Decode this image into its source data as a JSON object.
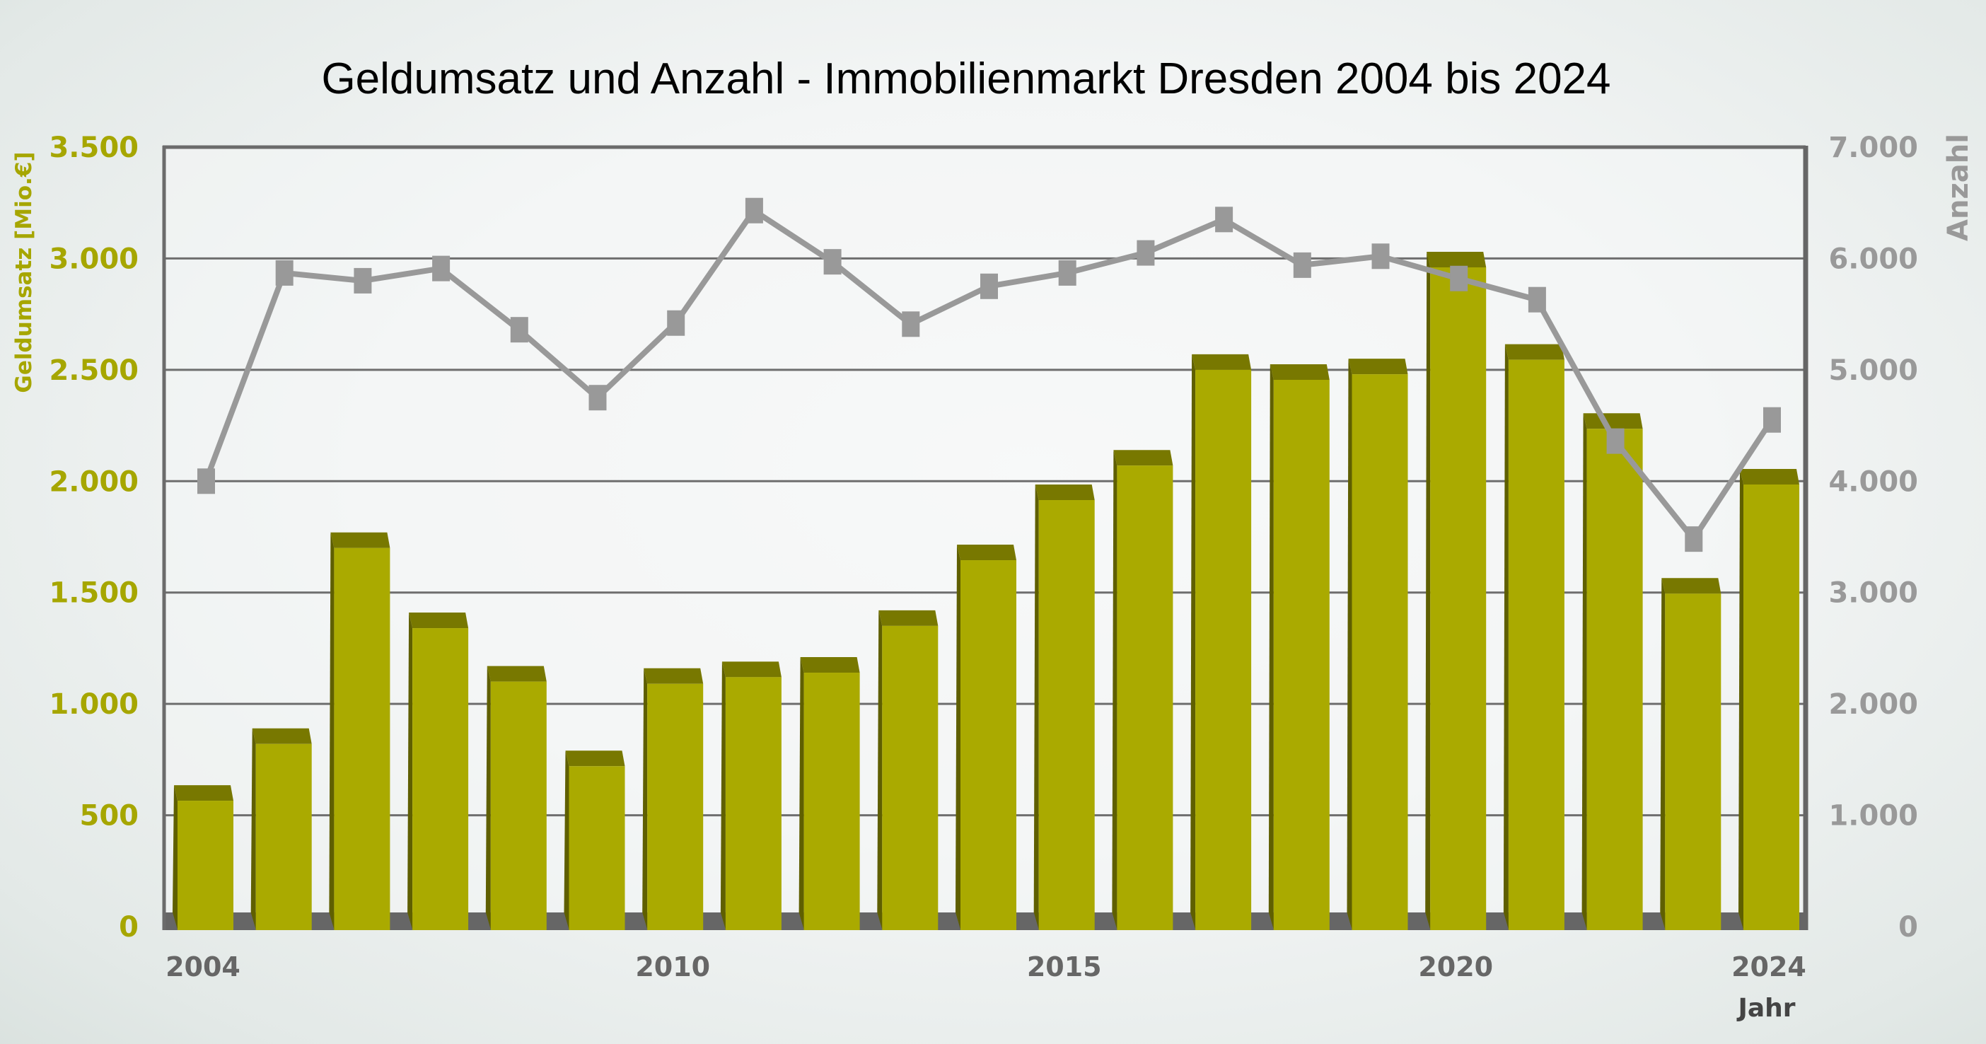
{
  "chart_data": {
    "type": "bar",
    "title": "Geldumsatz und Anzahl - Immobilienmarkt Dresden 2004 bis 2024",
    "xlabel": "Jahr",
    "ylabel": "Geldumsatz [Mio.€]",
    "y2label": "Anzahl",
    "x": [
      2004,
      2005,
      2006,
      2007,
      2008,
      2009,
      2010,
      2011,
      2012,
      2013,
      2014,
      2015,
      2016,
      2017,
      2018,
      2019,
      2020,
      2021,
      2022,
      2023,
      2024
    ],
    "x_tick_labels": [
      "2004",
      "2010",
      "2015",
      "2020",
      "2024"
    ],
    "x_tick_values": [
      2004,
      2010,
      2015,
      2020,
      2024
    ],
    "ylim": [
      0,
      3500
    ],
    "y_ticks": [
      0,
      500,
      1000,
      1500,
      2000,
      2500,
      3000,
      3500
    ],
    "y_tick_labels": [
      "0",
      "500",
      "1.000",
      "1.500",
      "2.000",
      "2.500",
      "3.000",
      "3.500"
    ],
    "y2lim": [
      0,
      7000
    ],
    "y2_ticks": [
      0,
      1000,
      2000,
      3000,
      4000,
      5000,
      6000,
      7000
    ],
    "y2_tick_labels": [
      "0",
      "1.000",
      "2.000",
      "3.000",
      "4.000",
      "5.000",
      "6.000",
      "7.000"
    ],
    "grid": true,
    "legend": "none",
    "series": [
      {
        "name": "Geldumsatz",
        "type": "bar",
        "axis": "left",
        "unit": "Mio. €",
        "color": "#aaaa00",
        "shade_color": "#787800",
        "values": [
          635,
          890,
          1770,
          1410,
          1170,
          790,
          1160,
          1190,
          1210,
          1420,
          1715,
          1985,
          2140,
          2570,
          2525,
          2550,
          3030,
          2615,
          2305,
          1565,
          2055
        ]
      },
      {
        "name": "Anzahl",
        "type": "line",
        "axis": "right",
        "color": "#999999",
        "marker": "square",
        "values": [
          4000,
          5870,
          5800,
          5910,
          5360,
          4750,
          5420,
          6430,
          5970,
          5410,
          5750,
          5870,
          6050,
          6350,
          5940,
          6020,
          5820,
          5630,
          4360,
          3480,
          4550
        ]
      }
    ]
  }
}
